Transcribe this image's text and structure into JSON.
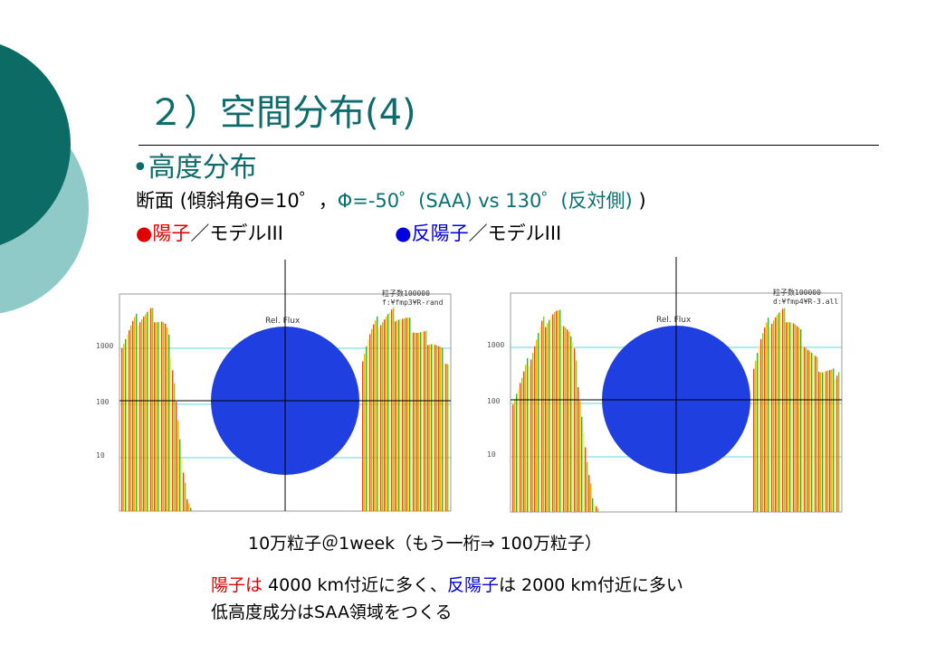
{
  "slide": {
    "title": "２）空間分布(4)",
    "bullet": "•高度分布",
    "cross_section": {
      "prefix": "断面 (傾斜角Θ=10゜，",
      "phi": "Φ=-50゜(SAA) vs 130゜(反対側)",
      "suffix": " )"
    },
    "legend": {
      "proton_dot": "●",
      "proton_label": "陽子",
      "proton_model": "／モデルIII",
      "antiproton_dot": "●",
      "antiproton_label": "反陽子",
      "antiproton_model": "／モデルIII"
    },
    "caption": "10万粒子＠1week（もう一桁⇒ 100万粒子）",
    "conclusion": {
      "proton_word": "陽子は",
      "proton_text": " 4000 km付近に多く、",
      "antiproton_word": "反陽子",
      "antiproton_text": "は 2000 km付近に多い",
      "line2": "低高度成分はSAA領域をつくる"
    },
    "colors": {
      "title": "#0e6b6b",
      "proton": "#e00000",
      "antiproton": "#0000e0",
      "earth_disc": "#1f3fe0",
      "decor_dark": "#0d6b66",
      "decor_light": "#8fc9c8"
    }
  },
  "chart_data": [
    {
      "type": "bar",
      "ytick_labels": [
        "1000",
        "100",
        "10"
      ],
      "yscale": "log",
      "center_label": "Rel. Flux",
      "annotation": [
        "粒子数100000",
        "f:¥fmp3¥R-rand"
      ]
    },
    {
      "type": "bar",
      "ytick_labels": [
        "1000",
        "100",
        "10"
      ],
      "yscale": "log",
      "center_label": "Rel. Flux",
      "annotation": [
        "粒子数100000",
        "d:¥fmp4¥R-3.all"
      ]
    }
  ]
}
